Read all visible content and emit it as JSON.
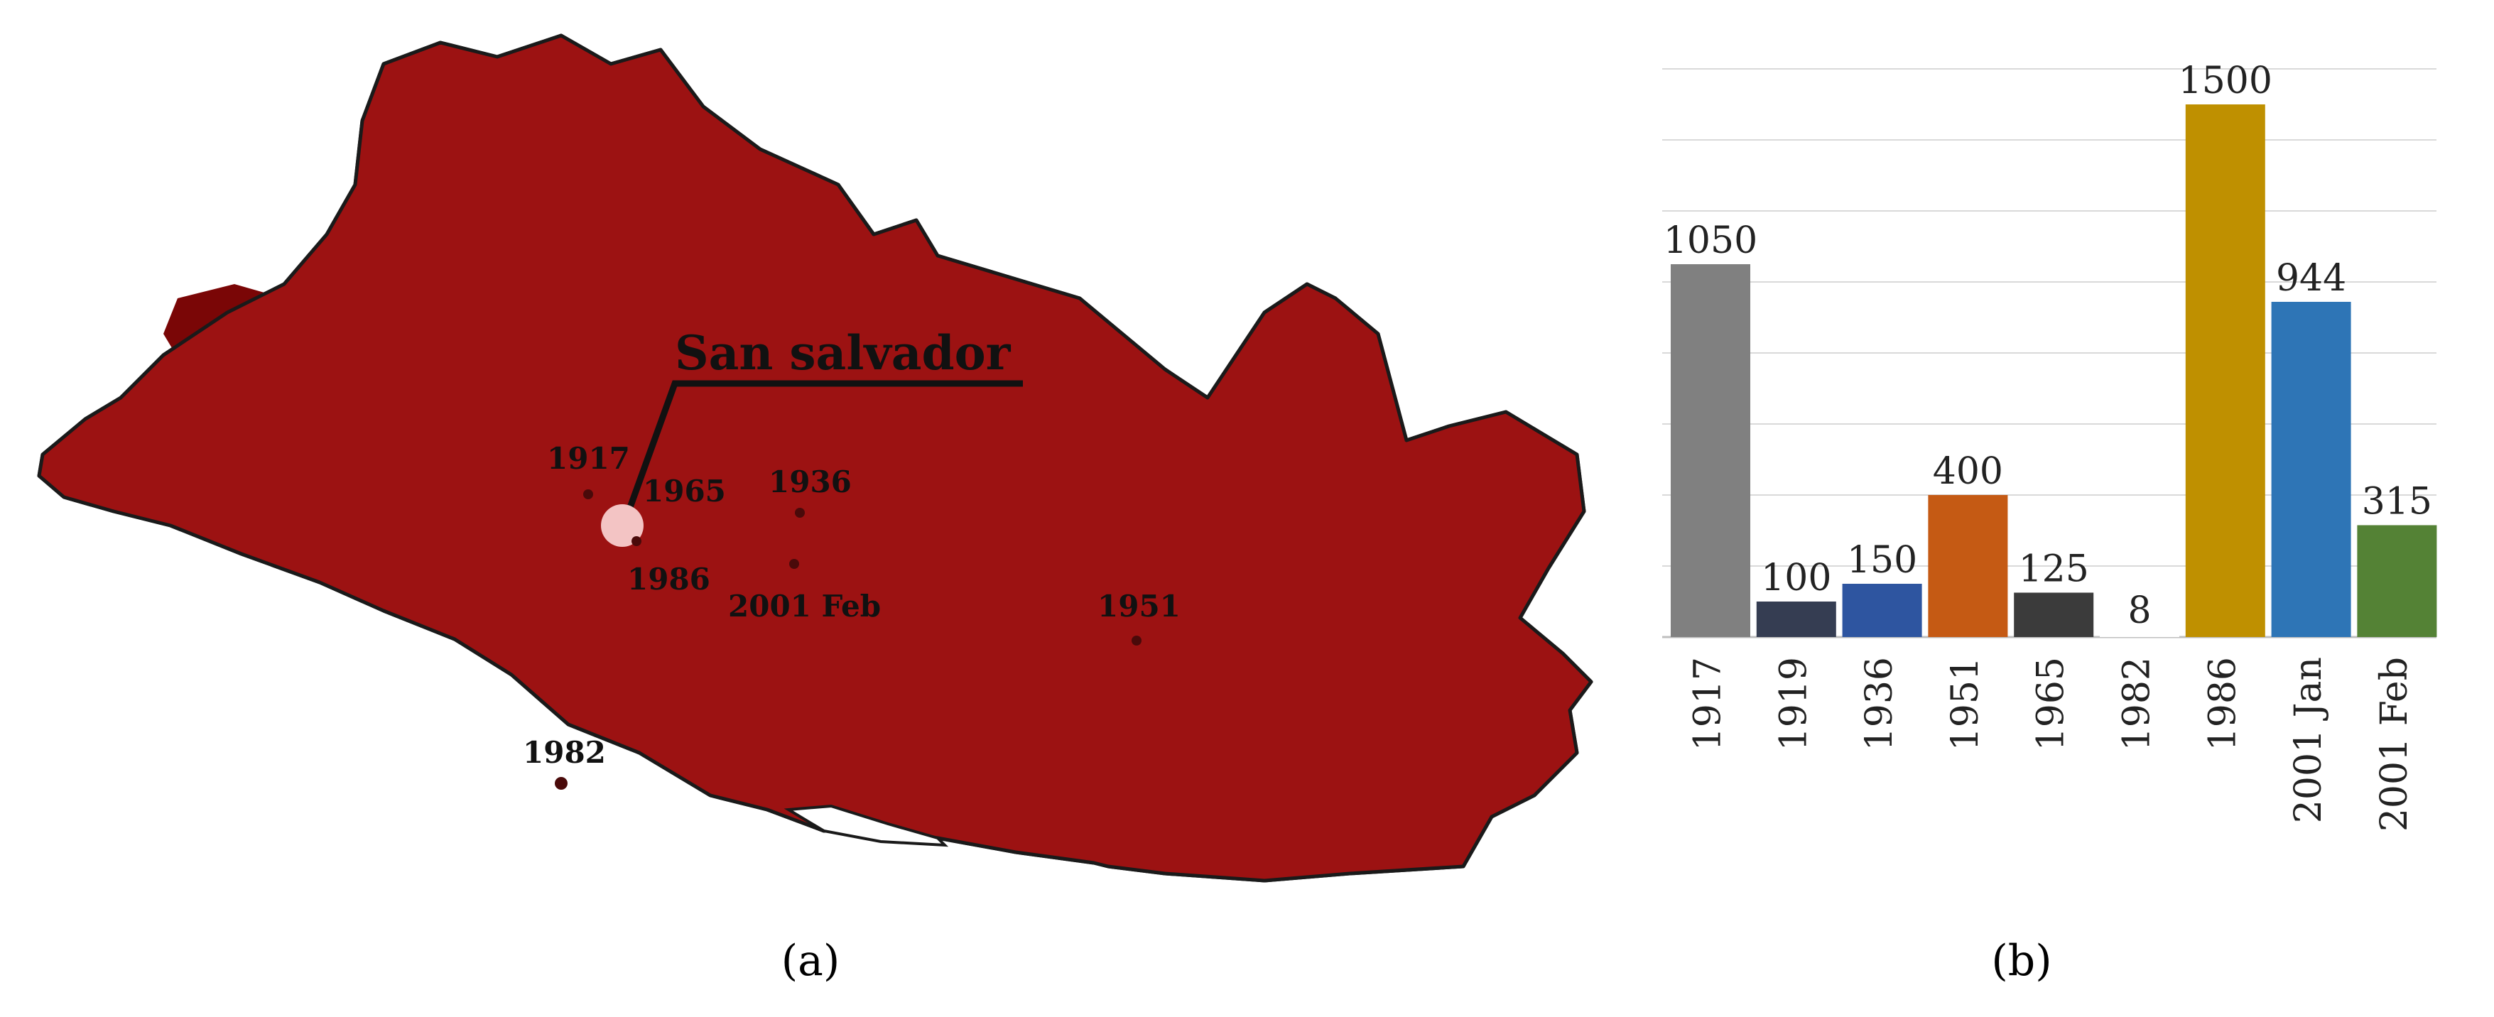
{
  "map": {
    "city_label": "San salvador",
    "event_labels": [
      "1917",
      "1965",
      "1936",
      "1986",
      "2001 Feb",
      "1951",
      "1982"
    ],
    "colors": {
      "base": "#9c1212",
      "dark": "#7a0606",
      "light": "#ad3a3a",
      "outline": "#1a1a1a",
      "city_marker": "#f3c4c4",
      "event_dot": "#4a0a0a"
    },
    "icons": [
      "city-marker-icon",
      "event-marker-icon"
    ]
  },
  "panel_labels": {
    "a": "(a)",
    "b": "(b)"
  },
  "chart_data": {
    "type": "bar",
    "categories": [
      "1917",
      "1919",
      "1936",
      "1951",
      "1965",
      "1982",
      "1986",
      "2001  Jan",
      "2001 Feb"
    ],
    "values": [
      1050,
      100,
      150,
      400,
      125,
      8,
      1500,
      944,
      315
    ],
    "colors": [
      "#808080",
      "#353d52",
      "#2e55a0",
      "#c55a14",
      "#3b3b3b",
      "#ffffff",
      "#bf9000",
      "#2e75b6",
      "#548235"
    ],
    "ylim": [
      0,
      1600
    ],
    "grid": true,
    "title": "",
    "xlabel": "",
    "ylabel": ""
  }
}
